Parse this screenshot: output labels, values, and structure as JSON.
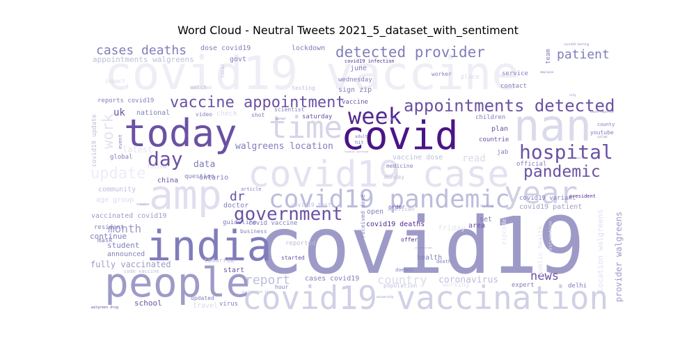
{
  "chart_data": {
    "type": "wordcloud",
    "title": "Word Cloud - Neutral Tweets 2021_5_dataset_with_sentiment",
    "colormap": "purples",
    "background": "#ffffff",
    "words": [
      {
        "text": "covid19",
        "weight": 1.0,
        "color": "#9e9ac8"
      },
      {
        "text": "covid19 vaccine",
        "weight": 0.66,
        "color": "#efedf5"
      },
      {
        "text": "covid",
        "weight": 0.55,
        "color": "#4a1486"
      },
      {
        "text": "today",
        "weight": 0.55,
        "color": "#6a51a3"
      },
      {
        "text": "nan",
        "weight": 0.6,
        "color": "#dadaeb"
      },
      {
        "text": "india",
        "weight": 0.58,
        "color": "#807dba"
      },
      {
        "text": "people",
        "weight": 0.56,
        "color": "#9e9ac8"
      },
      {
        "text": "amp",
        "weight": 0.56,
        "color": "#e1def0"
      },
      {
        "text": "covid19 case",
        "weight": 0.5,
        "color": "#e4e2f0"
      },
      {
        "text": "covid19 vaccination",
        "weight": 0.46,
        "color": "#d0d0e6"
      },
      {
        "text": "time",
        "weight": 0.44,
        "color": "#d6d4e8"
      },
      {
        "text": "year",
        "weight": 0.42,
        "color": "#d0d0e6"
      },
      {
        "text": "covid19 pandemic",
        "weight": 0.37,
        "color": "#bcbddc"
      },
      {
        "text": "week",
        "weight": 0.33,
        "color": "#54278f"
      },
      {
        "text": "hospital",
        "weight": 0.29,
        "color": "#6a51a3"
      },
      {
        "text": "appointments detected",
        "weight": 0.25,
        "color": "#6a51a3"
      },
      {
        "text": "day",
        "weight": 0.27,
        "color": "#6a51a3"
      },
      {
        "text": "government",
        "weight": 0.27,
        "color": "#6a51a3"
      },
      {
        "text": "vaccine appointment",
        "weight": 0.22,
        "color": "#6a51a3"
      },
      {
        "text": "detected provider",
        "weight": 0.21,
        "color": "#807dba"
      },
      {
        "text": "pandemic",
        "weight": 0.23,
        "color": "#6a51a3"
      },
      {
        "text": "update",
        "weight": 0.21,
        "color": "#eeecf6"
      },
      {
        "text": "work",
        "weight": 0.2,
        "color": "#e4e2f0"
      },
      {
        "text": "cases deaths",
        "weight": 0.18,
        "color": "#807dba"
      },
      {
        "text": "patient",
        "weight": 0.18,
        "color": "#807dba"
      },
      {
        "text": "dr",
        "weight": 0.18,
        "color": "#6a51a3"
      },
      {
        "text": "report",
        "weight": 0.18,
        "color": "#bcbddc"
      },
      {
        "text": "country",
        "weight": 0.17,
        "color": "#dadaeb"
      },
      {
        "text": "news",
        "weight": 0.17,
        "color": "#6a51a3"
      },
      {
        "text": "month",
        "weight": 0.16,
        "color": "#9e9ac8"
      },
      {
        "text": "walgreens location",
        "weight": 0.13,
        "color": "#807dba"
      },
      {
        "text": "data",
        "weight": 0.13,
        "color": "#807dba"
      },
      {
        "text": "coronavirus",
        "weight": 0.13,
        "color": "#bcbddc"
      },
      {
        "text": "provider walgreens",
        "weight": 0.12,
        "color": "#9e9ac8"
      },
      {
        "text": "fully vaccinated",
        "weight": 0.12,
        "color": "#9e9ac8"
      },
      {
        "text": "uk",
        "weight": 0.12,
        "color": "#6a51a3"
      },
      {
        "text": "read",
        "weight": 0.13,
        "color": "#dadaeb"
      },
      {
        "text": "school",
        "weight": 0.11,
        "color": "#6a51a3"
      },
      {
        "text": "start",
        "weight": 0.1,
        "color": "#6a51a3"
      },
      {
        "text": "vaccine dose",
        "weight": 0.1,
        "color": "#bcbddc"
      },
      {
        "text": "latest",
        "weight": 0.1,
        "color": "#e4e2f0"
      },
      {
        "text": "student",
        "weight": 0.09,
        "color": "#807dba"
      },
      {
        "text": "continue",
        "weight": 0.09,
        "color": "#807dba"
      },
      {
        "text": "appointments walgreens",
        "weight": 0.09,
        "color": "#bcbddc"
      },
      {
        "text": "covid19 update",
        "weight": 0.08,
        "color": "#bcbddc"
      },
      {
        "text": "location walgreens",
        "weight": 0.1,
        "color": "#e1def0"
      },
      {
        "text": "public health",
        "weight": 0.08,
        "color": "#e4e2f0"
      },
      {
        "text": "covid19 deaths",
        "weight": 0.08,
        "color": "#54278f"
      },
      {
        "text": "cases covid19",
        "weight": 0.08,
        "color": "#807dba"
      },
      {
        "text": "dose covid19",
        "weight": 0.08,
        "color": "#807dba"
      },
      {
        "text": "lockdown",
        "weight": 0.08,
        "color": "#807dba"
      },
      {
        "text": "govt",
        "weight": 0.08,
        "color": "#807dba"
      },
      {
        "text": "national",
        "weight": 0.08,
        "color": "#807dba"
      },
      {
        "text": "question",
        "weight": 0.07,
        "color": "#807dba"
      },
      {
        "text": "china",
        "weight": 0.08,
        "color": "#6a51a3"
      },
      {
        "text": "ontario",
        "weight": 0.08,
        "color": "#807dba"
      },
      {
        "text": "community",
        "weight": 0.08,
        "color": "#bcbddc"
      },
      {
        "text": "age group",
        "weight": 0.08,
        "color": "#dadaeb"
      },
      {
        "text": "vaccinated covid19",
        "weight": 0.08,
        "color": "#9e9ac8"
      },
      {
        "text": "plan",
        "weight": 0.08,
        "color": "#6a51a3"
      },
      {
        "text": "countrie",
        "weight": 0.07,
        "color": "#6a51a3"
      },
      {
        "text": "official",
        "weight": 0.07,
        "color": "#807dba"
      },
      {
        "text": "covid19 variant",
        "weight": 0.08,
        "color": "#807dba"
      },
      {
        "text": "covid19 patient",
        "weight": 0.08,
        "color": "#9e9ac8"
      },
      {
        "text": "area",
        "weight": 0.07,
        "color": "#6a51a3"
      },
      {
        "text": "offer",
        "weight": 0.06,
        "color": "#54278f"
      },
      {
        "text": "health",
        "weight": 0.07,
        "color": "#807dba"
      },
      {
        "text": "expert",
        "weight": 0.07,
        "color": "#807dba"
      },
      {
        "text": "delhi",
        "weight": 0.07,
        "color": "#807dba"
      },
      {
        "text": "friday",
        "weight": 0.07,
        "color": "#e4e2f0"
      },
      {
        "text": "working",
        "weight": 0.07,
        "color": "#e4e2f0"
      },
      {
        "text": "order",
        "weight": 0.06,
        "color": "#6a51a3"
      },
      {
        "text": "set",
        "weight": 0.06,
        "color": "#807dba"
      },
      {
        "text": "medicine",
        "weight": 0.06,
        "color": "#807dba"
      },
      {
        "text": "monday",
        "weight": 0.06,
        "color": "#bcbddc"
      },
      {
        "text": "announced",
        "weight": 0.07,
        "color": "#807dba"
      },
      {
        "text": "mask",
        "weight": 0.06,
        "color": "#807dba"
      },
      {
        "text": "resident",
        "weight": 0.06,
        "color": "#807dba"
      },
      {
        "text": "doctor",
        "weight": 0.07,
        "color": "#807dba"
      },
      {
        "text": "guideline",
        "weight": 0.07,
        "color": "#807dba"
      },
      {
        "text": "covid vaccine",
        "weight": 0.07,
        "color": "#807dba"
      },
      {
        "text": "business",
        "weight": 0.06,
        "color": "#807dba"
      },
      {
        "text": "open",
        "weight": 0.07,
        "color": "#807dba"
      },
      {
        "text": "covid19 test",
        "weight": 0.06,
        "color": "#bcbddc"
      },
      {
        "text": "american",
        "weight": 0.06,
        "color": "#bcbddc"
      },
      {
        "text": "reported",
        "weight": 0.06,
        "color": "#bcbddc"
      },
      {
        "text": "tomorrow",
        "weight": 0.06,
        "color": "#bcbddc"
      },
      {
        "text": "started",
        "weight": 0.06,
        "color": "#6a51a3"
      },
      {
        "text": "hour",
        "weight": 0.06,
        "color": "#807dba"
      },
      {
        "text": "updated",
        "weight": 0.06,
        "color": "#807dba"
      },
      {
        "text": "travel",
        "weight": 0.06,
        "color": "#dadaeb"
      },
      {
        "text": "virus",
        "weight": 0.06,
        "color": "#807dba"
      },
      {
        "text": "population",
        "weight": 0.06,
        "color": "#bcbddc"
      },
      {
        "text": "sign zip",
        "weight": 0.07,
        "color": "#807dba"
      },
      {
        "text": "wednesday",
        "weight": 0.07,
        "color": "#807dba"
      },
      {
        "text": "june",
        "weight": 0.07,
        "color": "#807dba"
      },
      {
        "text": "vaccine",
        "weight": 0.06,
        "color": "#6a51a3"
      },
      {
        "text": "saturday",
        "weight": 0.06,
        "color": "#6a51a3"
      },
      {
        "text": "children",
        "weight": 0.06,
        "color": "#807dba"
      },
      {
        "text": "jab",
        "weight": 0.06,
        "color": "#807dba"
      },
      {
        "text": "service",
        "weight": 0.06,
        "color": "#807dba"
      },
      {
        "text": "contact",
        "weight": 0.06,
        "color": "#807dba"
      },
      {
        "text": "worker",
        "weight": 0.05,
        "color": "#807dba"
      },
      {
        "text": "place",
        "weight": 0.06,
        "color": "#dadaeb"
      },
      {
        "text": "youtube",
        "weight": 0.05,
        "color": "#807dba"
      },
      {
        "text": "county",
        "weight": 0.05,
        "color": "#807dba"
      },
      {
        "text": "team",
        "weight": 0.06,
        "color": "#807dba"
      },
      {
        "text": "reports covid19",
        "weight": 0.06,
        "color": "#807dba"
      },
      {
        "text": "scientist",
        "weight": 0.05,
        "color": "#807dba"
      },
      {
        "text": "video",
        "weight": 0.05,
        "color": "#807dba"
      },
      {
        "text": "shot",
        "weight": 0.05,
        "color": "#807dba"
      },
      {
        "text": "check",
        "weight": 0.07,
        "color": "#dadaeb"
      },
      {
        "text": "watch",
        "weight": 0.05,
        "color": "#bcbddc"
      },
      {
        "text": "testing",
        "weight": 0.05,
        "color": "#bcbddc"
      },
      {
        "text": "impact",
        "weight": 0.05,
        "color": "#dadaeb"
      },
      {
        "text": "local",
        "weight": 0.05,
        "color": "#bcbddc"
      },
      {
        "text": "global",
        "weight": 0.06,
        "color": "#807dba"
      },
      {
        "text": "follow",
        "weight": 0.05,
        "color": "#dadaeb"
      },
      {
        "text": "event",
        "weight": 0.05,
        "color": "#807dba"
      },
      {
        "text": "covid19 infection",
        "weight": 0.04,
        "color": "#54278f"
      },
      {
        "text": "received dose",
        "weight": 0.05,
        "color": "#807dba"
      },
      {
        "text": "zipcode",
        "weight": 0.05,
        "color": "#e4e2f0"
      },
      {
        "text": "restriction",
        "weight": 0.05,
        "color": "#dadaeb"
      },
      {
        "text": "president",
        "weight": 0.04,
        "color": "#54278f"
      },
      {
        "text": "article",
        "weight": 0.04,
        "color": "#807dba"
      },
      {
        "text": "death",
        "weight": 0.04,
        "color": "#807dba"
      },
      {
        "text": "doesnt",
        "weight": 0.04,
        "color": "#807dba"
      },
      {
        "text": "code vaccine",
        "weight": 0.04,
        "color": "#bcbddc"
      },
      {
        "text": "hit",
        "weight": 0.04,
        "color": "#807dba"
      },
      {
        "text": "adult",
        "weight": 0.04,
        "color": "#807dba"
      },
      {
        "text": "pfizer",
        "weight": 0.04,
        "color": "#bcbddc"
      },
      {
        "text": "walgreen drug",
        "weight": 0.03,
        "color": "#6a51a3"
      },
      {
        "text": "remember",
        "weight": 0.03,
        "color": "#807dba"
      },
      {
        "text": "instituted tiers",
        "weight": 0.03,
        "color": "#bcbddc"
      },
      {
        "text": "employee",
        "weight": 0.03,
        "color": "#807dba"
      },
      {
        "text": "covid19 testing",
        "weight": 0.03,
        "color": "#807dba"
      },
      {
        "text": "city",
        "weight": 0.03,
        "color": "#807dba"
      },
      {
        "text": "cases reported",
        "weight": 0.03,
        "color": "#807dba"
      },
      {
        "text": "facebook instituted",
        "weight": 0.03,
        "color": "#807dba"
      },
      {
        "text": "covid19 origin",
        "weight": 0.03,
        "color": "#807dba"
      },
      {
        "text": "university",
        "weight": 0.03,
        "color": "#807dba"
      },
      {
        "text": "drug store",
        "weight": 0.03,
        "color": "#807dba"
      },
      {
        "text": "called",
        "weight": 0.03,
        "color": "#807dba"
      },
      {
        "text": "starting",
        "weight": 0.03,
        "color": "#807dba"
      },
      {
        "text": "market",
        "weight": 0.03,
        "color": "#807dba"
      }
    ]
  }
}
